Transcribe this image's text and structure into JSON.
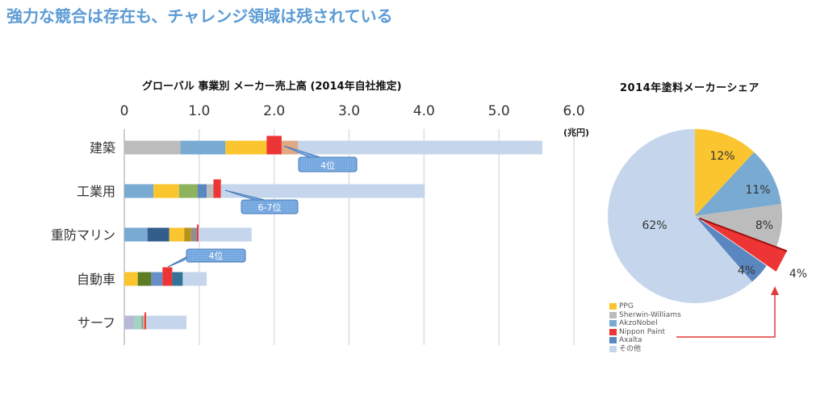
{
  "headline": "強力な競合は存在も、チャレンジ領域は残されている",
  "chart_data": [
    {
      "type": "bar",
      "orientation": "horizontal-stacked",
      "title": "グローバル  事業別 メーカー売上高  (2014年自社推定)",
      "unit_label": "(兆円)",
      "xlim": [
        0,
        6.0
      ],
      "x_ticks": [
        "0",
        "1.0",
        "2.0",
        "3.0",
        "4.0",
        "5.0",
        "6.0"
      ],
      "grid": true,
      "categories": [
        "建築",
        "工業用",
        "重防マリン",
        "自動車",
        "サーフ"
      ],
      "rows": [
        {
          "category": "建築",
          "segments": [
            {
              "color": "#bcbcbc",
              "value": 0.75
            },
            {
              "color": "#78aad2",
              "value": 0.6
            },
            {
              "color": "#fbc52f",
              "value": 0.55
            },
            {
              "color": "#ee3535",
              "value": 0.2,
              "highlight": true
            },
            {
              "color": "#e0a986",
              "value": 0.22
            },
            {
              "color": "#c5d6ec",
              "value": 3.26
            }
          ],
          "total": 5.58,
          "callout": "4位"
        },
        {
          "category": "工業用",
          "segments": [
            {
              "color": "#78aad2",
              "value": 0.39
            },
            {
              "color": "#fbc52f",
              "value": 0.34
            },
            {
              "color": "#8db35f",
              "value": 0.25
            },
            {
              "color": "#5b87c0",
              "value": 0.12
            },
            {
              "color": "#bcbcbc",
              "value": 0.09
            },
            {
              "color": "#ee3535",
              "value": 0.1,
              "highlight": true
            },
            {
              "color": "#c5d6ec",
              "value": 2.72
            }
          ],
          "total": 4.01,
          "callout": "6-7位"
        },
        {
          "category": "重防マリン",
          "segments": [
            {
              "color": "#78aad2",
              "value": 0.31
            },
            {
              "color": "#335e8c",
              "value": 0.29
            },
            {
              "color": "#fbc52f",
              "value": 0.2
            },
            {
              "color": "#b8931c",
              "value": 0.09
            },
            {
              "color": "#909090",
              "value": 0.08
            },
            {
              "color": "#ee3535",
              "value": 0.02,
              "highlight": true
            },
            {
              "color": "#c5d6ec",
              "value": 0.71
            }
          ],
          "total": 1.7
        },
        {
          "category": "自動車",
          "segments": [
            {
              "color": "#fbc52f",
              "value": 0.18
            },
            {
              "color": "#5d7c24",
              "value": 0.18
            },
            {
              "color": "#6890c6",
              "value": 0.15
            },
            {
              "color": "#ee3535",
              "value": 0.13,
              "highlight": true
            },
            {
              "color": "#33739a",
              "value": 0.14
            },
            {
              "color": "#c5d6ec",
              "value": 0.32
            }
          ],
          "total": 1.1,
          "callout": "4位"
        },
        {
          "category": "サーフ",
          "segments": [
            {
              "color": "#b8b8d8",
              "value": 0.13
            },
            {
              "color": "#a3d2c0",
              "value": 0.1
            },
            {
              "color": "#6fa0c8",
              "value": 0.02
            },
            {
              "color": "#f0a860",
              "value": 0.02
            },
            {
              "color": "#ee3535",
              "value": 0.02,
              "highlight": true
            },
            {
              "color": "#c5d6ec",
              "value": 0.54
            }
          ],
          "total": 0.83
        }
      ]
    },
    {
      "type": "pie",
      "title": "2014年塗料メーカーシェア",
      "slices": [
        {
          "label": "PPG",
          "value": 12,
          "display": "12%",
          "color": "#fbc52f"
        },
        {
          "label": "AkzoNobel",
          "value": 11,
          "display": "11%",
          "color": "#78aad2"
        },
        {
          "label": "Sherwin-Williams",
          "value": 8,
          "display": "8%",
          "color": "#bcbcbc"
        },
        {
          "label": "Nippon Paint",
          "value": 4,
          "display": "4%",
          "color": "#ee3535",
          "exploded": true
        },
        {
          "label": "Axalta",
          "value": 4,
          "display": "4%",
          "color": "#5b87c0"
        },
        {
          "label": "その他",
          "value": 62,
          "display": "62%",
          "color": "#c5d6ec"
        }
      ],
      "legend": [
        {
          "label": "PPG",
          "color": "#fbc52f"
        },
        {
          "label": "Sherwin-Williams",
          "color": "#bcbcbc"
        },
        {
          "label": "AkzoNobel",
          "color": "#78aad2"
        },
        {
          "label": "Nippon Paint",
          "color": "#ee3535"
        },
        {
          "label": "Axalta",
          "color": "#5b87c0"
        },
        {
          "label": "その他",
          "color": "#c5d6ec"
        }
      ],
      "legend_position": "bottom-left",
      "annotation": "arrow from legend 'Nippon Paint' to exploded slice"
    }
  ]
}
